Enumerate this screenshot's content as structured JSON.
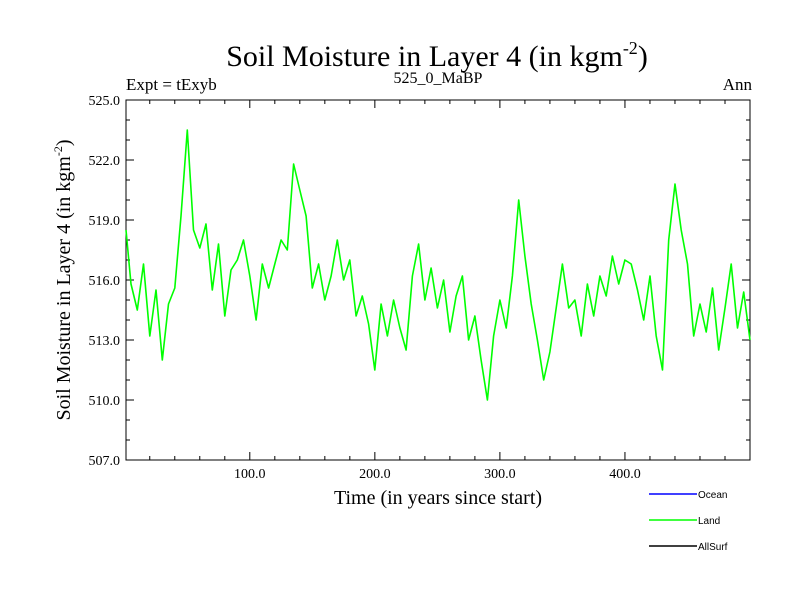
{
  "header": {
    "title_main": "Soil Moisture in Layer 4 (in kgm",
    "title_sup": "-2",
    "title_close": ")",
    "left_label": "Expt = tExyb",
    "center_label": "525_0_MaBP",
    "right_label": "Ann"
  },
  "chart_data": {
    "type": "line",
    "title": "Soil Moisture in Layer 4 (in kgm-2)",
    "xlabel": "Time (in years since start)",
    "ylabel_main": "Soil Moisture in Layer 4 (in kgm",
    "ylabel_sup": "-2",
    "ylabel_close": ")",
    "xlim": [
      1,
      500
    ],
    "ylim": [
      507.0,
      525.0
    ],
    "x_ticks": [
      100,
      200,
      300,
      400
    ],
    "x_tick_labels": [
      "100.0",
      "200.0",
      "300.0",
      "400.0"
    ],
    "y_ticks": [
      507,
      510,
      513,
      516,
      519,
      522,
      525
    ],
    "y_tick_labels": [
      "507.0",
      "510.0",
      "513.0",
      "516.0",
      "519.0",
      "522.0",
      "525.0"
    ],
    "grid": false,
    "legend_position": "bottom-right",
    "legend": [
      {
        "name": "Ocean",
        "color": "#0000ff"
      },
      {
        "name": "Land",
        "color": "#00ff00"
      },
      {
        "name": "AllSurf",
        "color": "#000000"
      }
    ],
    "series": [
      {
        "name": "Land",
        "color": "#00ff00",
        "x": [
          1,
          5,
          10,
          15,
          20,
          25,
          30,
          35,
          40,
          45,
          50,
          55,
          60,
          65,
          70,
          75,
          80,
          85,
          90,
          95,
          100,
          105,
          110,
          115,
          120,
          125,
          130,
          135,
          140,
          145,
          150,
          155,
          160,
          165,
          170,
          175,
          180,
          185,
          190,
          195,
          200,
          205,
          210,
          215,
          220,
          225,
          230,
          235,
          240,
          245,
          250,
          255,
          260,
          265,
          270,
          275,
          280,
          285,
          290,
          295,
          300,
          305,
          310,
          315,
          320,
          325,
          330,
          335,
          340,
          345,
          350,
          355,
          360,
          365,
          370,
          375,
          380,
          385,
          390,
          395,
          400,
          405,
          410,
          415,
          420,
          425,
          430,
          435,
          440,
          445,
          450,
          455,
          460,
          465,
          470,
          475,
          480,
          485,
          490,
          495,
          500
        ],
        "values": [
          518.5,
          515.8,
          514.5,
          516.8,
          513.2,
          515.5,
          512.0,
          514.8,
          515.6,
          519.2,
          523.5,
          518.5,
          517.6,
          518.8,
          515.5,
          517.8,
          514.2,
          516.5,
          517.0,
          518.0,
          516.2,
          514.0,
          516.8,
          515.6,
          516.8,
          518.0,
          517.5,
          521.8,
          520.5,
          519.2,
          515.6,
          516.8,
          515.0,
          516.2,
          518.0,
          516.0,
          517.0,
          514.2,
          515.2,
          513.8,
          511.5,
          514.8,
          513.2,
          515.0,
          513.6,
          512.5,
          516.2,
          517.8,
          515.0,
          516.6,
          514.6,
          516.0,
          513.4,
          515.2,
          516.2,
          513.0,
          514.2,
          512.0,
          510.0,
          513.2,
          515.0,
          513.6,
          516.2,
          520.0,
          517.2,
          514.8,
          513.0,
          511.0,
          512.4,
          514.6,
          516.8,
          514.6,
          515.0,
          513.2,
          515.8,
          514.2,
          516.2,
          515.2,
          517.2,
          515.8,
          517.0,
          516.8,
          515.5,
          514.0,
          516.2,
          513.2,
          511.5,
          518.0,
          520.8,
          518.5,
          516.8,
          513.2,
          514.8,
          513.4,
          515.6,
          512.5,
          514.6,
          516.8,
          513.6,
          515.4,
          513.0
        ]
      }
    ]
  }
}
